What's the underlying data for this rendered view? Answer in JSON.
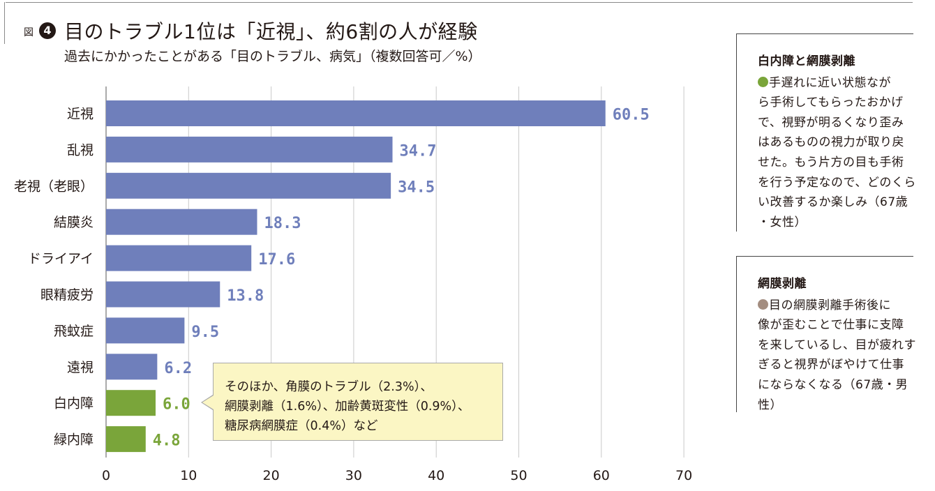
{
  "figure": {
    "prefix": "図",
    "number": "4",
    "title": "目のトラブル1位は「近視」、約6割の人が経験",
    "subtitle": "過去にかかったことがある「目のトラブル、病気」（複数回答可／%）"
  },
  "chart_data": {
    "type": "bar",
    "orientation": "horizontal",
    "categories": [
      "近視",
      "乱視",
      "老視（老眼）",
      "結膜炎",
      "ドライアイ",
      "眼精疲労",
      "飛蚊症",
      "遠視",
      "白内障",
      "緑内障"
    ],
    "values": [
      60.5,
      34.7,
      34.5,
      18.3,
      17.6,
      13.8,
      9.5,
      6.2,
      6.0,
      4.8
    ],
    "value_labels": [
      "60.5",
      "34.7",
      "34.5",
      "18.3",
      "17.6",
      "13.8",
      "9.5",
      "6.2",
      "6.0",
      "4.8"
    ],
    "bar_colors": [
      "#6f7fbb",
      "#6f7fbb",
      "#6f7fbb",
      "#6f7fbb",
      "#6f7fbb",
      "#6f7fbb",
      "#6f7fbb",
      "#6f7fbb",
      "#7aa53a",
      "#7aa53a"
    ],
    "xlim": [
      0,
      70
    ],
    "xticks": [
      "0",
      "10",
      "20",
      "30",
      "40",
      "50",
      "60",
      "70"
    ],
    "grid": true
  },
  "note": {
    "lines": [
      "そのほか、角膜のトラブル（2.3%）、",
      "網膜剥離（1.6%）、加齢黄斑変性（0.9%）、",
      "糖尿病網膜症（0.4%）など"
    ]
  },
  "sidebar": [
    {
      "title": "白内障と網膜剥離",
      "dot_color": "#7aa53a",
      "lines": [
        "手遅れに近い状態なが",
        "ら手術してもらったおかげ",
        "で、視野が明るくなり歪み",
        "はあるものの視力が取り戻",
        "せた。もう片方の目も手術",
        "を行う予定なので、どのくら",
        "い改善するか楽しみ（67歳",
        "・女性）"
      ]
    },
    {
      "title": "網膜剥離",
      "dot_color": "#a38d80",
      "lines": [
        "目の網膜剥離手術後に",
        "像が歪むことで仕事に支障",
        "を来しているし、目が疲れす",
        "ぎると視界がぼやけて仕事",
        "にならなくなる（67歳・男",
        "性）"
      ]
    }
  ]
}
